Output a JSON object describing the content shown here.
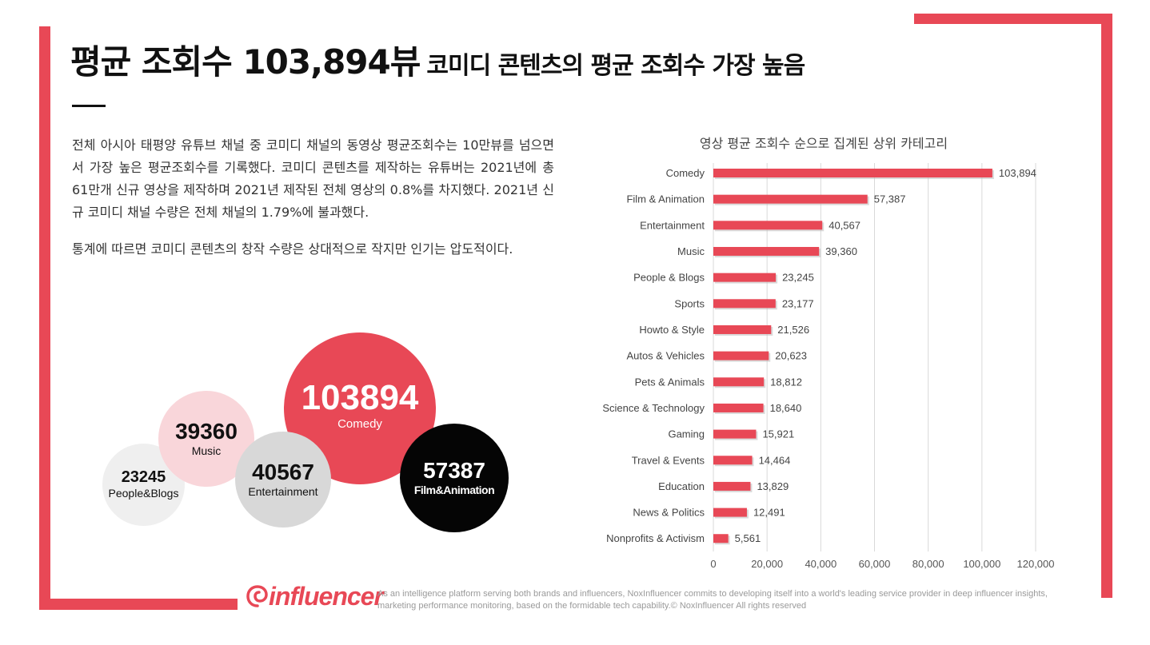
{
  "header": {
    "title_main": "평균 조회수 103,894뷰",
    "title_sub": "코미디 콘텐츠의 평균 조회수 가장 높음"
  },
  "body": {
    "paragraph_1": "전체 아시아 태평양 유튜브 채널 중 코미디 채널의 동영상 평균조회수는 10만뷰를 넘으면서 가장 높은 평균조회수를 기록했다. 코미디 콘텐츠를 제작하는 유튜버는 2021년에 총 61만개 신규 영상을 제작하며 2021년 제작된 전체 영상의 0.8%를 차지했다. 2021년 신규 코미디 채널 수량은 전체 채널의 1.79%에 불과했다.",
    "paragraph_2": "통계에 따르면 코미디 콘텐츠의 창작 수량은 상대적으로 작지만 인기는 압도적이다."
  },
  "bubbles": {
    "comedy": {
      "value": "103894",
      "label": "Comedy"
    },
    "music": {
      "value": "39360",
      "label": "Music"
    },
    "entertainment": {
      "value": "40567",
      "label": "Entertainment"
    },
    "people_blogs": {
      "value": "23245",
      "label": "People&Blogs"
    },
    "film_animation": {
      "value": "57387",
      "label": "Film&Animation"
    }
  },
  "chart_data": {
    "type": "bar",
    "orientation": "horizontal",
    "title": "영상 평균 조회수 순으로 집계된 상위 카테고리",
    "categories": [
      "Comedy",
      "Film & Animation",
      "Entertainment",
      "Music",
      "People & Blogs",
      "Sports",
      "Howto & Style",
      "Autos & Vehicles",
      "Pets & Animals",
      "Science & Technology",
      "Gaming",
      "Travel & Events",
      "Education",
      "News & Politics",
      "Nonprofits & Activism"
    ],
    "values": [
      103894,
      57387,
      40567,
      39360,
      23245,
      23177,
      21526,
      20623,
      18812,
      18640,
      15921,
      14464,
      13829,
      12491,
      5561
    ],
    "value_labels": [
      "103,894",
      "57,387",
      "40,567",
      "39,360",
      "23,245",
      "23,177",
      "21,526",
      "20,623",
      "18,812",
      "18,640",
      "15,921",
      "14,464",
      "13,829",
      "12,491",
      "5,561"
    ],
    "xlim": [
      0,
      120000
    ],
    "xticks": [
      0,
      20000,
      40000,
      60000,
      80000,
      100000,
      120000
    ],
    "xtick_labels": [
      "0",
      "20,000",
      "40,000",
      "60,000",
      "80,000",
      "100,000",
      "120,000"
    ],
    "grid": "vertical",
    "legend": "none",
    "bar_color": "#e84856"
  },
  "footer": {
    "logo_text": "influencer",
    "note": "As an intelligence platform serving both brands and influencers, NoxInfluencer commits to developing itself into a world's leading service provider in deep influencer insights, marketing performance monitoring, based on the formidable tech capability.© NoxInfluencer All rights reserved"
  },
  "colors": {
    "accent": "#e84856",
    "light_pink": "#f9d6da",
    "gray": "#d8d8d8",
    "light_gray": "#efefef",
    "black": "#050505"
  }
}
